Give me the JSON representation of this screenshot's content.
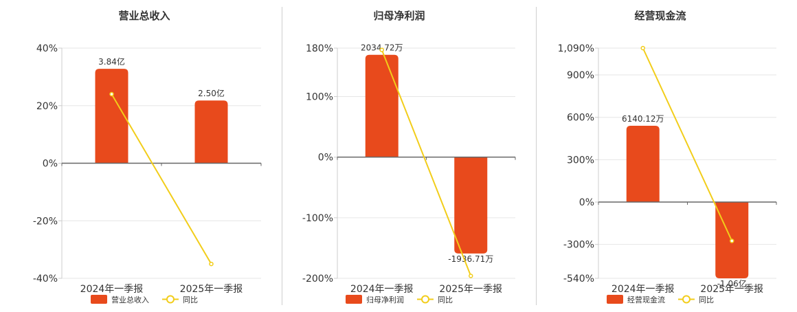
{
  "colors": {
    "bar": "#E84A1C",
    "line": "#F2CD1A",
    "grid": "#e6e6e6",
    "axis": "#666666",
    "text": "#333333"
  },
  "chart_data": [
    {
      "type": "bar",
      "title": "营业总收入",
      "categories": [
        "2024年一季报",
        "2025年一季报"
      ],
      "ylim": [
        -40,
        40
      ],
      "yticks": [
        40,
        20,
        0,
        -20,
        -40
      ],
      "ytick_labels": [
        "40%",
        "20%",
        "0%",
        "-20%",
        "-40%"
      ],
      "series": [
        {
          "name": "营业总收入",
          "kind": "bar",
          "values": [
            32.8,
            21.8
          ],
          "labels": [
            "3.84亿",
            "2.50亿"
          ]
        },
        {
          "name": "同比",
          "kind": "line",
          "values": [
            24,
            -35
          ]
        }
      ],
      "legend": [
        "营业总收入",
        "同比"
      ],
      "grid": true
    },
    {
      "type": "bar",
      "title": "归母净利润",
      "categories": [
        "2024年一季报",
        "2025年一季报"
      ],
      "ylim": [
        -200,
        180
      ],
      "yticks": [
        180,
        100,
        0,
        -100,
        -200
      ],
      "ytick_labels": [
        "180%",
        "100%",
        "0%",
        "-100%",
        "-200%"
      ],
      "series": [
        {
          "name": "归母净利润",
          "kind": "bar",
          "values": [
            169,
            -159
          ],
          "labels": [
            "2034.72万",
            "-1936.71万"
          ]
        },
        {
          "name": "同比",
          "kind": "line",
          "values": [
            177,
            -196
          ]
        }
      ],
      "legend": [
        "归母净利润",
        "同比"
      ],
      "grid": true
    },
    {
      "type": "bar",
      "title": "经营现金流",
      "categories": [
        "2024年一季报",
        "2025年一季报"
      ],
      "ylim": [
        -540,
        1090
      ],
      "yticks": [
        1090,
        900,
        600,
        300,
        0,
        -300,
        -540
      ],
      "ytick_labels": [
        "1,090%",
        "900%",
        "600%",
        "300%",
        "0%",
        "-300%",
        "-540%"
      ],
      "series": [
        {
          "name": "经营现金流",
          "kind": "bar",
          "values": [
            540,
            -540
          ],
          "labels": [
            "6140.12万",
            "-1.06亿"
          ]
        },
        {
          "name": "同比",
          "kind": "line",
          "values": [
            1090,
            -275
          ]
        }
      ],
      "legend": [
        "经营现金流",
        "同比"
      ],
      "grid": true
    }
  ]
}
